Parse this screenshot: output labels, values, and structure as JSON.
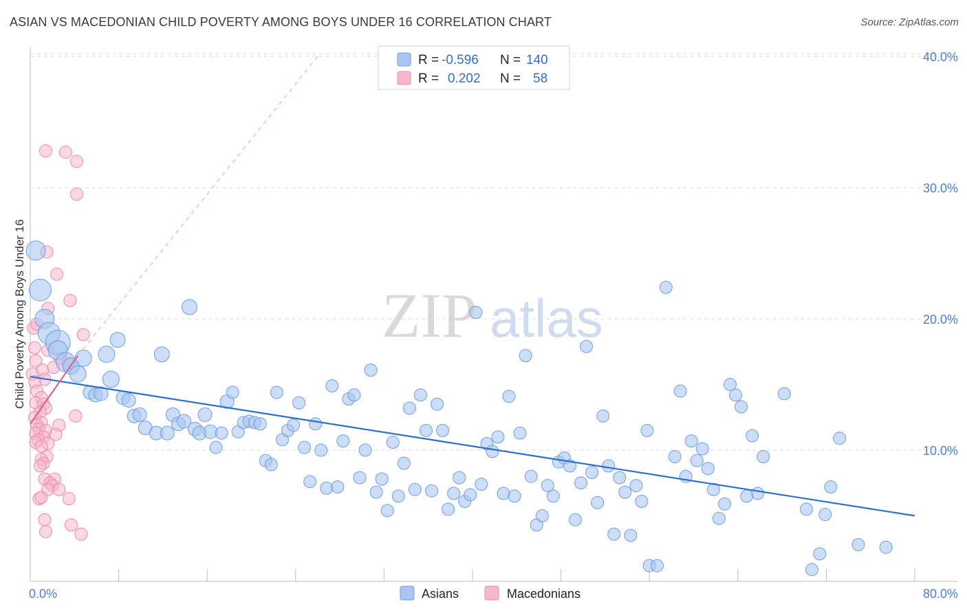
{
  "title": "ASIAN VS MACEDONIAN CHILD POVERTY AMONG BOYS UNDER 16 CORRELATION CHART",
  "source": "Source: ZipAtlas.com",
  "watermark": {
    "zip": "ZIP",
    "atlas": "atlas"
  },
  "legend": {
    "rows": [
      {
        "r_label": "R =",
        "r_value": "-0.596",
        "n_label": "N =",
        "n_value": "140",
        "color": "#a9c6f2"
      },
      {
        "r_label": "R =",
        "r_value": "0.202",
        "n_label": "N =",
        "n_value": "58",
        "color": "#f7b8cb"
      }
    ]
  },
  "colors": {
    "asian_fill": "#a9c6f2",
    "asian_stroke": "#6f9de0",
    "asian_line": "#2a6fd0",
    "mac_fill": "#f7b8cb",
    "mac_stroke": "#e98aa8",
    "mac_line": "#e0608a",
    "axis_text": "#4a7fd0",
    "grid": "#d8d8d8"
  },
  "chart_data": {
    "type": "scatter",
    "title": "ASIAN VS MACEDONIAN CHILD POVERTY AMONG BOYS UNDER 16 CORRELATION CHART",
    "xlabel": "",
    "ylabel": "Child Poverty Among Boys Under 16",
    "xlim": [
      0,
      80
    ],
    "ylim": [
      0,
      40
    ],
    "x_tick_labels": [
      "0.0%",
      "80.0%"
    ],
    "y_ticks": [
      10,
      20,
      30,
      40
    ],
    "y_tick_labels": [
      "10.0%",
      "20.0%",
      "30.0%",
      "40.0%"
    ],
    "legend": [
      "Asians",
      "Macedonians"
    ],
    "series": [
      {
        "name": "Asians",
        "r": -0.596,
        "n": 140,
        "trend": {
          "x": [
            0,
            80
          ],
          "y": [
            15.6,
            5.0
          ]
        },
        "points": [
          [
            0.5,
            25.2,
            14
          ],
          [
            0.9,
            22.2,
            16
          ],
          [
            1.3,
            20.0,
            14
          ],
          [
            1.7,
            18.9,
            16
          ],
          [
            2.5,
            18.2,
            18
          ],
          [
            2.5,
            17.6,
            14
          ],
          [
            3.2,
            16.7,
            14
          ],
          [
            3.7,
            16.4,
            12
          ],
          [
            4.3,
            15.8,
            12
          ],
          [
            4.8,
            17.0,
            12
          ],
          [
            5.4,
            14.4,
            10
          ],
          [
            5.9,
            14.2,
            10
          ],
          [
            6.4,
            14.3,
            10
          ],
          [
            6.9,
            17.3,
            12
          ],
          [
            7.3,
            15.4,
            12
          ],
          [
            7.9,
            18.4,
            11
          ],
          [
            8.4,
            14.0,
            10
          ],
          [
            8.9,
            13.8,
            10
          ],
          [
            9.4,
            12.6,
            10
          ],
          [
            9.9,
            12.7,
            10
          ],
          [
            10.4,
            11.7,
            10
          ],
          [
            11.4,
            11.3,
            10
          ],
          [
            11.9,
            17.3,
            11
          ],
          [
            12.4,
            11.3,
            10
          ],
          [
            12.9,
            12.7,
            10
          ],
          [
            13.4,
            12.0,
            10
          ],
          [
            13.9,
            12.2,
            10
          ],
          [
            14.4,
            20.9,
            11
          ],
          [
            14.9,
            11.6,
            10
          ],
          [
            15.3,
            11.3,
            10
          ],
          [
            15.8,
            12.7,
            10
          ],
          [
            16.3,
            11.4,
            10
          ],
          [
            16.8,
            10.2,
            9
          ],
          [
            17.3,
            11.3,
            9
          ],
          [
            17.8,
            13.7,
            10
          ],
          [
            18.3,
            14.4,
            9
          ],
          [
            18.8,
            11.4,
            9
          ],
          [
            19.3,
            12.1,
            9
          ],
          [
            19.8,
            12.2,
            9
          ],
          [
            20.3,
            12.1,
            9
          ],
          [
            20.8,
            12.0,
            9
          ],
          [
            21.3,
            9.2,
            9
          ],
          [
            21.8,
            8.9,
            9
          ],
          [
            22.3,
            14.4,
            9
          ],
          [
            22.8,
            10.8,
            9
          ],
          [
            23.3,
            11.5,
            9
          ],
          [
            23.8,
            11.9,
            9
          ],
          [
            24.3,
            13.6,
            9
          ],
          [
            24.8,
            10.2,
            9
          ],
          [
            25.3,
            7.6,
            9
          ],
          [
            25.8,
            12.0,
            9
          ],
          [
            26.3,
            10.0,
            9
          ],
          [
            26.8,
            7.1,
            9
          ],
          [
            27.3,
            14.9,
            9
          ],
          [
            27.8,
            7.2,
            9
          ],
          [
            28.3,
            10.7,
            9
          ],
          [
            28.8,
            13.9,
            9
          ],
          [
            29.3,
            14.2,
            9
          ],
          [
            29.8,
            7.9,
            9
          ],
          [
            30.3,
            10.0,
            9
          ],
          [
            30.8,
            16.1,
            9
          ],
          [
            31.3,
            6.8,
            9
          ],
          [
            31.8,
            7.8,
            9
          ],
          [
            32.3,
            5.4,
            9
          ],
          [
            32.8,
            10.6,
            9
          ],
          [
            33.3,
            6.5,
            9
          ],
          [
            33.8,
            9.0,
            9
          ],
          [
            34.3,
            13.2,
            9
          ],
          [
            34.8,
            7.0,
            9
          ],
          [
            35.3,
            14.2,
            9
          ],
          [
            35.8,
            11.5,
            9
          ],
          [
            36.3,
            6.9,
            9
          ],
          [
            36.8,
            13.5,
            9
          ],
          [
            37.3,
            11.5,
            9
          ],
          [
            37.8,
            5.5,
            9
          ],
          [
            38.3,
            6.7,
            9
          ],
          [
            38.8,
            7.9,
            9
          ],
          [
            39.3,
            6.1,
            9
          ],
          [
            39.8,
            6.6,
            9
          ],
          [
            40.3,
            20.5,
            9
          ],
          [
            40.8,
            7.4,
            9
          ],
          [
            41.3,
            10.5,
            9
          ],
          [
            41.8,
            9.9,
            9
          ],
          [
            42.3,
            11.0,
            9
          ],
          [
            42.8,
            6.7,
            9
          ],
          [
            43.3,
            14.1,
            9
          ],
          [
            43.8,
            6.5,
            9
          ],
          [
            44.3,
            11.3,
            9
          ],
          [
            44.8,
            17.2,
            9
          ],
          [
            45.3,
            8.0,
            9
          ],
          [
            45.8,
            4.3,
            9
          ],
          [
            46.3,
            5.0,
            9
          ],
          [
            46.8,
            7.3,
            9
          ],
          [
            47.3,
            6.5,
            9
          ],
          [
            47.8,
            9.1,
            9
          ],
          [
            48.3,
            9.4,
            9
          ],
          [
            48.8,
            8.8,
            9
          ],
          [
            49.3,
            4.7,
            9
          ],
          [
            49.8,
            7.5,
            9
          ],
          [
            50.3,
            17.9,
            9
          ],
          [
            50.8,
            8.3,
            9
          ],
          [
            51.3,
            6.0,
            9
          ],
          [
            51.8,
            12.6,
            9
          ],
          [
            52.3,
            8.8,
            9
          ],
          [
            52.8,
            3.6,
            9
          ],
          [
            53.3,
            7.9,
            9
          ],
          [
            53.8,
            6.8,
            9
          ],
          [
            54.3,
            3.5,
            9
          ],
          [
            54.8,
            7.3,
            9
          ],
          [
            55.3,
            6.1,
            9
          ],
          [
            56.0,
            1.2,
            9
          ],
          [
            56.7,
            1.2,
            9
          ],
          [
            57.5,
            22.4,
            9
          ],
          [
            58.3,
            9.5,
            9
          ],
          [
            58.8,
            14.5,
            9
          ],
          [
            59.3,
            8.0,
            9
          ],
          [
            59.8,
            10.7,
            9
          ],
          [
            60.3,
            9.2,
            9
          ],
          [
            60.8,
            10.1,
            9
          ],
          [
            61.3,
            8.6,
            9
          ],
          [
            61.8,
            7.0,
            9
          ],
          [
            62.3,
            4.8,
            9
          ],
          [
            62.8,
            5.9,
            9
          ],
          [
            63.3,
            15.0,
            9
          ],
          [
            63.8,
            14.2,
            9
          ],
          [
            64.3,
            13.3,
            9
          ],
          [
            65.3,
            11.1,
            9
          ],
          [
            65.8,
            6.7,
            9
          ],
          [
            66.3,
            9.5,
            9
          ],
          [
            68.2,
            14.3,
            9
          ],
          [
            70.2,
            5.5,
            9
          ],
          [
            70.7,
            0.9,
            9
          ],
          [
            71.4,
            2.1,
            9
          ],
          [
            71.9,
            5.1,
            9
          ],
          [
            72.4,
            7.2,
            9
          ],
          [
            73.2,
            10.9,
            9
          ],
          [
            74.9,
            2.8,
            9
          ],
          [
            77.4,
            2.6,
            9
          ],
          [
            64.8,
            6.5,
            9
          ],
          [
            55.8,
            11.5,
            9
          ]
        ]
      },
      {
        "name": "Macedonians",
        "r": 0.202,
        "n": 58,
        "trend": {
          "x": [
            0,
            4.3
          ],
          "y": [
            12.0,
            17.2
          ]
        },
        "trend_ext": {
          "x": [
            4.3,
            26
          ],
          "y": [
            17.2,
            40
          ]
        },
        "points": [
          [
            1.4,
            32.8
          ],
          [
            3.2,
            32.7
          ],
          [
            4.2,
            32.0
          ],
          [
            4.2,
            29.5
          ],
          [
            1.5,
            25.1
          ],
          [
            2.4,
            23.4
          ],
          [
            3.6,
            21.4
          ],
          [
            1.6,
            20.8
          ],
          [
            0.3,
            19.3
          ],
          [
            4.8,
            18.8
          ],
          [
            0.4,
            17.8
          ],
          [
            1.6,
            17.6
          ],
          [
            2.7,
            17.0
          ],
          [
            3.4,
            16.6
          ],
          [
            0.5,
            16.8
          ],
          [
            1.1,
            16.1
          ],
          [
            0.2,
            15.8
          ],
          [
            1.3,
            15.4
          ],
          [
            0.4,
            15.2
          ],
          [
            0.6,
            14.5
          ],
          [
            1.0,
            14.0
          ],
          [
            0.5,
            13.6
          ],
          [
            1.2,
            13.5
          ],
          [
            1.4,
            13.2
          ],
          [
            0.9,
            12.9
          ],
          [
            0.4,
            12.5
          ],
          [
            4.1,
            12.6
          ],
          [
            1.0,
            12.1
          ],
          [
            0.6,
            11.9
          ],
          [
            2.6,
            11.9
          ],
          [
            0.8,
            11.6
          ],
          [
            1.4,
            11.5
          ],
          [
            0.5,
            11.3
          ],
          [
            2.3,
            11.2
          ],
          [
            1.2,
            11.0
          ],
          [
            0.7,
            10.8
          ],
          [
            0.5,
            10.6
          ],
          [
            1.6,
            10.5
          ],
          [
            1.0,
            10.3
          ],
          [
            1.5,
            9.5
          ],
          [
            1.0,
            9.3
          ],
          [
            1.2,
            9.0
          ],
          [
            0.9,
            8.8
          ],
          [
            1.3,
            7.8
          ],
          [
            2.2,
            7.8
          ],
          [
            1.8,
            7.5
          ],
          [
            2.0,
            7.3
          ],
          [
            1.6,
            7.0
          ],
          [
            2.6,
            7.0
          ],
          [
            0.8,
            6.3
          ],
          [
            1.0,
            6.4
          ],
          [
            3.5,
            6.3
          ],
          [
            1.3,
            4.7
          ],
          [
            1.4,
            3.8
          ],
          [
            3.7,
            4.3
          ],
          [
            4.6,
            3.6
          ],
          [
            0.6,
            19.6
          ],
          [
            2.1,
            16.3
          ]
        ]
      }
    ]
  }
}
